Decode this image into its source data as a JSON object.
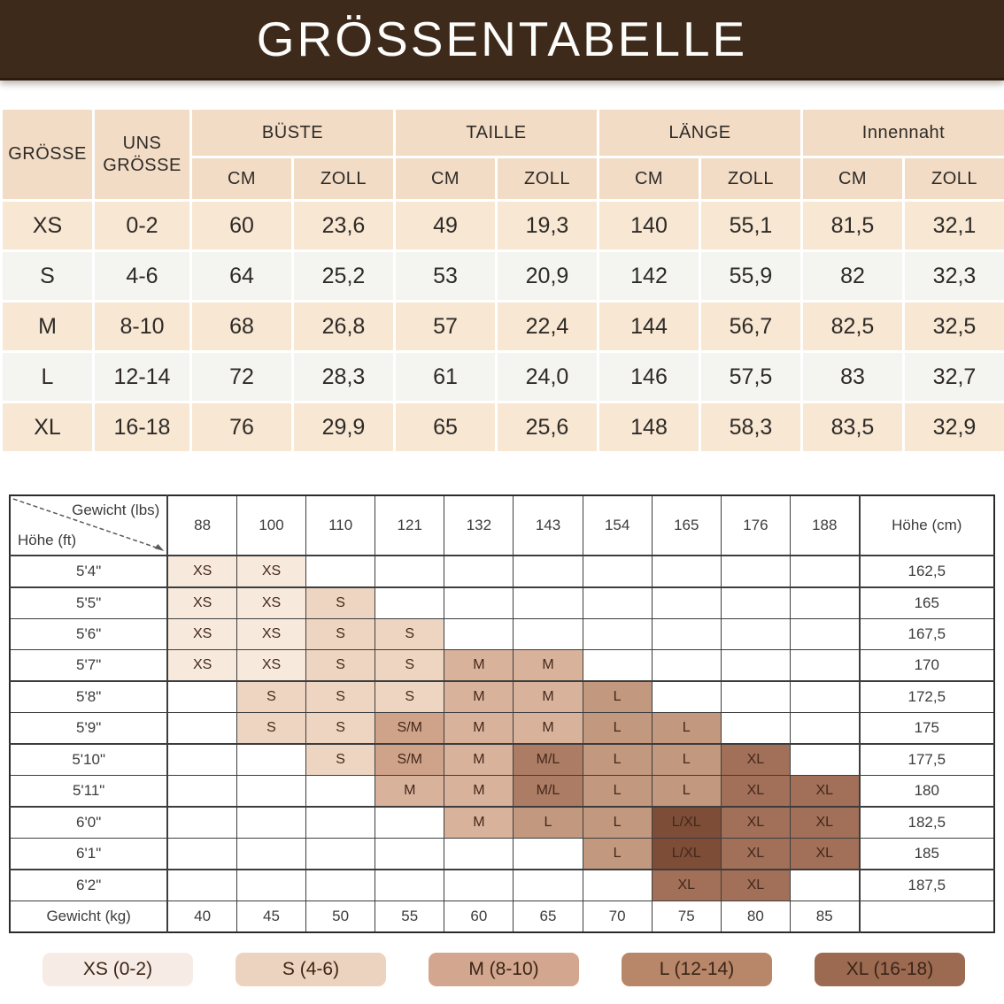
{
  "banner": {
    "title": "GRÖSSENTABELLE"
  },
  "size_table": {
    "col_groups": [
      {
        "label": "GRÖSSE"
      },
      {
        "label": "UNS GRÖSSE"
      },
      {
        "label": "BÜSTE"
      },
      {
        "label": "TAILLE"
      },
      {
        "label": "LÄNGE"
      },
      {
        "label": "Innennaht"
      }
    ],
    "unit_labels": [
      "CM",
      "ZOLL"
    ],
    "rows": [
      {
        "cells": [
          "XS",
          "0-2",
          "60",
          "23,6",
          "49",
          "19,3",
          "140",
          "55,1",
          "81,5",
          "32,1"
        ]
      },
      {
        "cells": [
          "S",
          "4-6",
          "64",
          "25,2",
          "53",
          "20,9",
          "142",
          "55,9",
          "82",
          "32,3"
        ]
      },
      {
        "cells": [
          "M",
          "8-10",
          "68",
          "26,8",
          "57",
          "22,4",
          "144",
          "56,7",
          "82,5",
          "32,5"
        ]
      },
      {
        "cells": [
          "L",
          "12-14",
          "72",
          "28,3",
          "61",
          "24,0",
          "146",
          "57,5",
          "83",
          "32,7"
        ]
      },
      {
        "cells": [
          "XL",
          "16-18",
          "76",
          "29,9",
          "65",
          "25,6",
          "148",
          "58,3",
          "83,5",
          "32,9"
        ]
      }
    ]
  },
  "matrix_table": {
    "corner": {
      "top": "Gewicht (lbs)",
      "bottom": "Höhe (ft)"
    },
    "weight_lbs": [
      "88",
      "100",
      "110",
      "121",
      "132",
      "143",
      "154",
      "165",
      "176",
      "188"
    ],
    "height_cm_header": "Höhe (cm)",
    "rows": [
      {
        "height_ft": "5'4\"",
        "sizes": [
          "XS",
          "XS",
          "",
          "",
          "",
          "",
          "",
          "",
          "",
          ""
        ],
        "height_cm": "162,5",
        "group_end": true
      },
      {
        "height_ft": "5'5\"",
        "sizes": [
          "XS",
          "XS",
          "S",
          "",
          "",
          "",
          "",
          "",
          "",
          ""
        ],
        "height_cm": "165",
        "group_end": false
      },
      {
        "height_ft": "5'6\"",
        "sizes": [
          "XS",
          "XS",
          "S",
          "S",
          "",
          "",
          "",
          "",
          "",
          ""
        ],
        "height_cm": "167,5",
        "group_end": false
      },
      {
        "height_ft": "5'7\"",
        "sizes": [
          "XS",
          "XS",
          "S",
          "S",
          "M",
          "M",
          "",
          "",
          "",
          ""
        ],
        "height_cm": "170",
        "group_end": true
      },
      {
        "height_ft": "5'8\"",
        "sizes": [
          "",
          "S",
          "S",
          "S",
          "M",
          "M",
          "L",
          "",
          "",
          ""
        ],
        "height_cm": "172,5",
        "group_end": false
      },
      {
        "height_ft": "5'9\"",
        "sizes": [
          "",
          "S",
          "S",
          "S/M",
          "M",
          "M",
          "L",
          "L",
          "",
          ""
        ],
        "height_cm": "175",
        "group_end": true
      },
      {
        "height_ft": "5'10\"",
        "sizes": [
          "",
          "",
          "S",
          "S/M",
          "M",
          "M/L",
          "L",
          "L",
          "XL",
          ""
        ],
        "height_cm": "177,5",
        "group_end": false
      },
      {
        "height_ft": "5'11\"",
        "sizes": [
          "",
          "",
          "",
          "M",
          "M",
          "M/L",
          "L",
          "L",
          "XL",
          "XL"
        ],
        "height_cm": "180",
        "group_end": true
      },
      {
        "height_ft": "6'0\"",
        "sizes": [
          "",
          "",
          "",
          "",
          "M",
          "L",
          "L",
          "L/XL",
          "XL",
          "XL"
        ],
        "height_cm": "182,5",
        "group_end": false
      },
      {
        "height_ft": "6'1\"",
        "sizes": [
          "",
          "",
          "",
          "",
          "",
          "",
          "L",
          "L/XL",
          "XL",
          "XL"
        ],
        "height_cm": "185",
        "group_end": true
      },
      {
        "height_ft": "6'2\"",
        "sizes": [
          "",
          "",
          "",
          "",
          "",
          "",
          "",
          "XL",
          "XL",
          ""
        ],
        "height_cm": "187,5",
        "group_end": false
      }
    ],
    "footer": {
      "label": "Gewicht (kg)",
      "values": [
        "40",
        "45",
        "50",
        "55",
        "60",
        "65",
        "70",
        "75",
        "80",
        "85"
      ]
    }
  },
  "legend": [
    {
      "label": "XS (0-2)",
      "color": "#f7ece5"
    },
    {
      "label": "S (4-6)",
      "color": "#ecd3bf"
    },
    {
      "label": "M (8-10)",
      "color": "#d3a78f"
    },
    {
      "label": "L (12-14)",
      "color": "#b88669"
    },
    {
      "label": "XL (16-18)",
      "color": "#9c6a51"
    }
  ],
  "colors": {
    "banner_bg": "#3e2a1b",
    "banner_text": "#fdfdfb",
    "table1_header_bg": "#f3dcc6",
    "table1_row_peach": "#f8e7d3",
    "table1_row_light": "#f4f4f1",
    "matrix_border": "#3d3d3d",
    "size_cells": {
      "XS": "#f7eadd",
      "S": "#eed5c2",
      "S/M": "#cfa38a",
      "M": "#d9b29c",
      "M/L": "#ad7c64",
      "L": "#c2987f",
      "L/XL": "#7d4d37",
      "XL": "#a26f58"
    }
  }
}
